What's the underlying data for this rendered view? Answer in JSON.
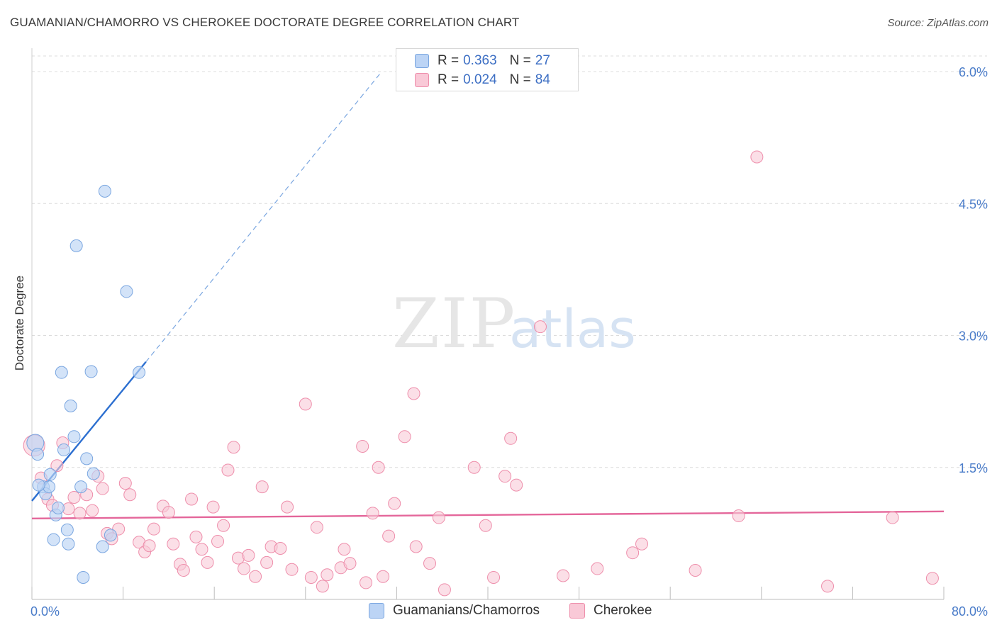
{
  "header": {
    "title": "GUAMANIAN/CHAMORRO VS CHEROKEE DOCTORATE DEGREE CORRELATION CHART",
    "source": "Source: ZipAtlas.com"
  },
  "watermark": {
    "zip": "ZIP",
    "atlas": "atlas"
  },
  "legend": {
    "r_label": "R =",
    "n_label": "N =",
    "rows": [
      {
        "r": "0.363",
        "n": "27",
        "color": "#a9c8f0"
      },
      {
        "r": "0.024",
        "n": "84",
        "color": "#f7b6c8"
      }
    ]
  },
  "bottom_legend": [
    {
      "label": "Guamanians/Chamorros",
      "color": "#a9c8f0"
    },
    {
      "label": "Cherokee",
      "color": "#f7b6c8"
    }
  ],
  "colors": {
    "blue_fill": "#bcd4f5",
    "blue_edge": "#7aa6e0",
    "blue_line": "#2c6fd0",
    "pink_fill": "#f9c9d7",
    "pink_edge": "#ee8eab",
    "pink_line": "#e4669a",
    "grid": "#dcdcdc",
    "axis_text": "#4a7cc9"
  },
  "chart_data": {
    "type": "scatter",
    "title": "GUAMANIAN/CHAMORRO VS CHEROKEE DOCTORATE DEGREE CORRELATION CHART",
    "xlabel": "",
    "ylabel": "Doctorate Degree",
    "xlim": [
      0,
      80
    ],
    "ylim": [
      0,
      6.25
    ],
    "x_tick_labels": [
      "0.0%",
      "80.0%"
    ],
    "y_ticks": [
      1.5,
      3.0,
      4.5,
      6.0
    ],
    "y_tick_labels": [
      "1.5%",
      "3.0%",
      "4.5%",
      "6.0%"
    ],
    "grid": true,
    "series": [
      {
        "name": "Guamanians/Chamorros",
        "r": 0.363,
        "n": 27,
        "trend": {
          "x0": 0.0,
          "y0": 1.12,
          "x1": 10.0,
          "y1": 2.7,
          "dash_to_x": 30.5,
          "dash_to_y": 5.97
        },
        "points": [
          [
            0.3,
            1.78
          ],
          [
            0.5,
            1.65
          ],
          [
            1.0,
            1.28
          ],
          [
            1.2,
            1.2
          ],
          [
            1.5,
            1.28
          ],
          [
            1.6,
            1.42
          ],
          [
            1.9,
            0.68
          ],
          [
            2.1,
            0.96
          ],
          [
            2.3,
            1.04
          ],
          [
            2.6,
            2.58
          ],
          [
            2.8,
            1.7
          ],
          [
            3.1,
            0.79
          ],
          [
            3.2,
            0.63
          ],
          [
            3.4,
            2.2
          ],
          [
            3.7,
            1.85
          ],
          [
            3.9,
            4.02
          ],
          [
            4.3,
            1.28
          ],
          [
            4.5,
            0.25
          ],
          [
            4.8,
            1.6
          ],
          [
            5.2,
            2.59
          ],
          [
            5.4,
            1.43
          ],
          [
            6.2,
            0.6
          ],
          [
            6.4,
            4.64
          ],
          [
            6.9,
            0.73
          ],
          [
            8.3,
            3.5
          ],
          [
            9.4,
            2.58
          ],
          [
            0.6,
            1.3
          ]
        ]
      },
      {
        "name": "Cherokee",
        "r": 0.024,
        "n": 84,
        "trend": {
          "x0": 0.0,
          "y0": 0.92,
          "x1": 80.0,
          "y1": 1.0
        },
        "points": [
          [
            0.2,
            1.75
          ],
          [
            0.8,
            1.38
          ],
          [
            1.4,
            1.14
          ],
          [
            1.8,
            1.07
          ],
          [
            2.2,
            1.52
          ],
          [
            2.7,
            1.78
          ],
          [
            3.2,
            1.03
          ],
          [
            3.7,
            1.16
          ],
          [
            4.2,
            0.98
          ],
          [
            4.8,
            1.19
          ],
          [
            5.3,
            1.01
          ],
          [
            5.8,
            1.4
          ],
          [
            6.2,
            1.26
          ],
          [
            6.6,
            0.75
          ],
          [
            7.0,
            0.69
          ],
          [
            7.6,
            0.8
          ],
          [
            8.2,
            1.32
          ],
          [
            8.6,
            1.19
          ],
          [
            9.4,
            0.65
          ],
          [
            9.9,
            0.54
          ],
          [
            10.3,
            0.61
          ],
          [
            10.7,
            0.8
          ],
          [
            11.5,
            1.06
          ],
          [
            12.0,
            0.99
          ],
          [
            12.4,
            0.63
          ],
          [
            13.0,
            0.4
          ],
          [
            13.3,
            0.33
          ],
          [
            14.0,
            1.14
          ],
          [
            14.4,
            0.71
          ],
          [
            14.9,
            0.57
          ],
          [
            15.4,
            0.42
          ],
          [
            15.9,
            1.05
          ],
          [
            16.3,
            0.66
          ],
          [
            16.8,
            0.84
          ],
          [
            17.2,
            1.47
          ],
          [
            17.7,
            1.73
          ],
          [
            18.1,
            0.47
          ],
          [
            18.6,
            0.35
          ],
          [
            19.0,
            0.5
          ],
          [
            19.6,
            0.26
          ],
          [
            20.2,
            1.28
          ],
          [
            20.6,
            0.42
          ],
          [
            21.0,
            0.6
          ],
          [
            21.8,
            0.58
          ],
          [
            22.4,
            1.05
          ],
          [
            22.8,
            0.34
          ],
          [
            24.0,
            2.22
          ],
          [
            24.5,
            0.25
          ],
          [
            25.0,
            0.82
          ],
          [
            25.5,
            0.15
          ],
          [
            25.9,
            0.28
          ],
          [
            27.1,
            0.36
          ],
          [
            27.4,
            0.57
          ],
          [
            27.9,
            0.41
          ],
          [
            29.0,
            1.74
          ],
          [
            29.3,
            0.19
          ],
          [
            29.9,
            0.98
          ],
          [
            30.4,
            1.5
          ],
          [
            30.8,
            0.26
          ],
          [
            31.3,
            0.72
          ],
          [
            31.8,
            1.09
          ],
          [
            32.7,
            1.85
          ],
          [
            33.5,
            2.34
          ],
          [
            33.7,
            0.6
          ],
          [
            34.9,
            0.41
          ],
          [
            35.7,
            0.93
          ],
          [
            36.2,
            0.11
          ],
          [
            38.8,
            1.5
          ],
          [
            39.8,
            0.84
          ],
          [
            40.5,
            0.25
          ],
          [
            41.5,
            1.4
          ],
          [
            42.0,
            1.83
          ],
          [
            42.5,
            1.3
          ],
          [
            44.6,
            3.1
          ],
          [
            46.6,
            0.27
          ],
          [
            49.6,
            0.35
          ],
          [
            52.7,
            0.53
          ],
          [
            53.5,
            0.63
          ],
          [
            58.2,
            0.33
          ],
          [
            62.0,
            0.95
          ],
          [
            63.6,
            5.03
          ],
          [
            69.8,
            0.15
          ],
          [
            75.5,
            0.93
          ],
          [
            79.0,
            0.24
          ]
        ]
      }
    ]
  }
}
